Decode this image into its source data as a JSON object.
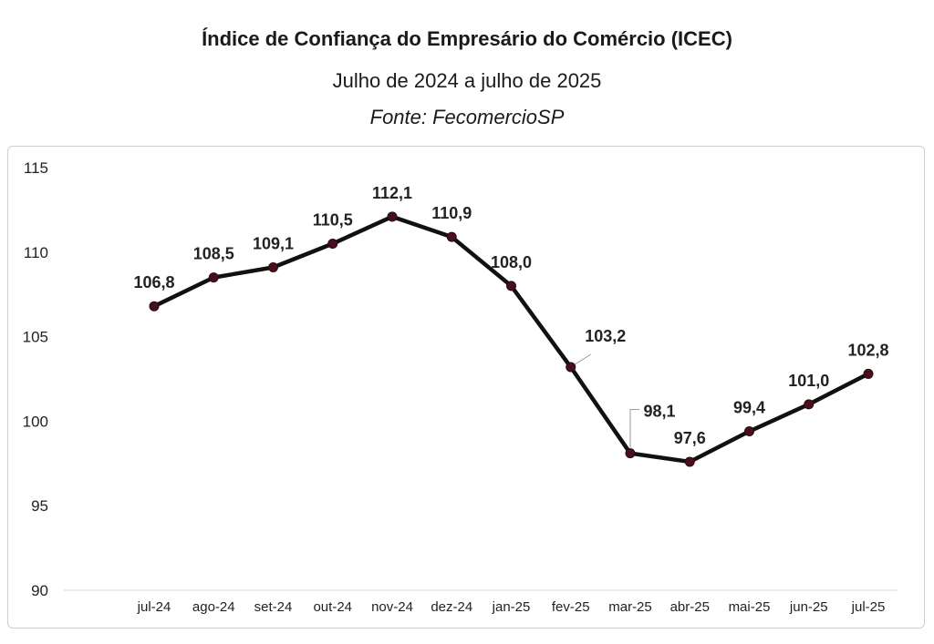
{
  "header": {
    "title": "Índice de Confiança do Empresário do Comércio (ICEC)",
    "subtitle": "Julho de 2024 a julho de 2025",
    "source": "Fonte: FecomercioSP"
  },
  "chart_data": {
    "type": "line",
    "title": "Índice de Confiança do Empresário do Comércio (ICEC)",
    "subtitle": "Julho de 2024 a julho de 2025",
    "source": "Fonte: FecomercioSP",
    "xlabel": "",
    "ylabel": "",
    "categories": [
      "jul-24",
      "ago-24",
      "set-24",
      "out-24",
      "nov-24",
      "dez-24",
      "jan-25",
      "fev-25",
      "mar-25",
      "abr-25",
      "mai-25",
      "jun-25",
      "jul-25"
    ],
    "series": [
      {
        "values": [
          106.8,
          108.5,
          109.1,
          110.5,
          112.1,
          110.9,
          108.0,
          103.2,
          98.1,
          97.6,
          99.4,
          101.0,
          102.8
        ]
      }
    ],
    "data_labels": [
      "106,8",
      "108,5",
      "109,1",
      "110,5",
      "112,1",
      "110,9",
      "108,0",
      "103,2",
      "98,1",
      "97,6",
      "99,4",
      "101,0",
      "102,8"
    ],
    "ylim": [
      90,
      115
    ],
    "yticks": [
      90,
      95,
      100,
      105,
      110,
      115
    ],
    "grid": false,
    "legend": "none",
    "colors": {
      "line": "#111111",
      "marker": "#4a0f1c"
    }
  }
}
